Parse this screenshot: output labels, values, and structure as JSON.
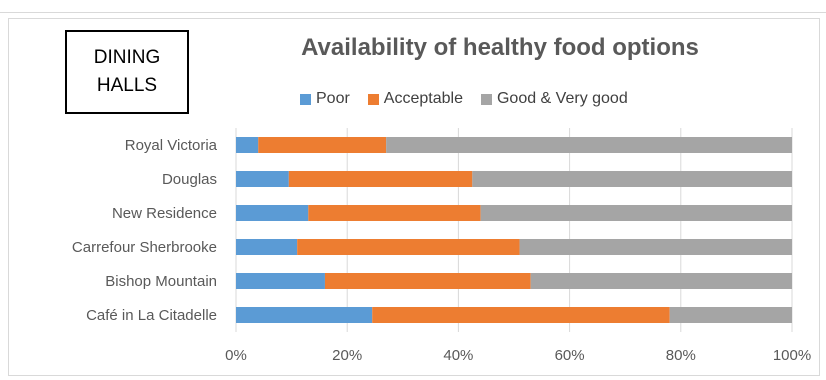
{
  "label_box": {
    "text": "DINING HALLS"
  },
  "chart_data": {
    "type": "bar",
    "orientation": "horizontal",
    "stacked": "percent",
    "title": "Availability of healthy food options",
    "categories": [
      "Royal Victoria",
      "Douglas",
      "New Residence",
      "Carrefour Sherbrooke",
      "Bishop Mountain",
      "Café in La Citadelle"
    ],
    "series": [
      {
        "name": "Poor",
        "color": "#5b9bd5",
        "values": [
          4,
          9.5,
          13,
          11,
          16,
          24.5
        ]
      },
      {
        "name": "Acceptable",
        "color": "#ed7d31",
        "values": [
          23,
          33,
          31,
          40,
          37,
          53.5
        ]
      },
      {
        "name": "Good & Very good",
        "color": "#a5a5a5",
        "values": [
          73,
          57.5,
          56,
          49,
          47,
          22
        ]
      }
    ],
    "xlim": [
      0,
      100
    ],
    "xticks": [
      "0%",
      "20%",
      "40%",
      "60%",
      "80%",
      "100%"
    ],
    "grid": true,
    "legend": "top"
  }
}
